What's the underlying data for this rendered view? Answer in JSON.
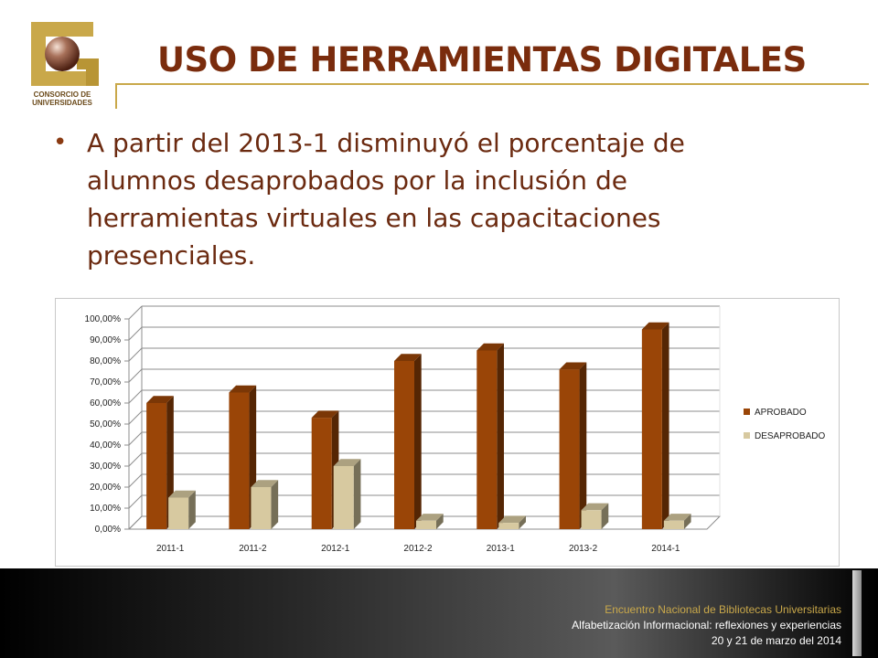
{
  "slide": {
    "title": "USO DE HERRAMIENTAS DIGITALES",
    "bullet_marker": "•",
    "bullet_text": "A partir del 2013-1 disminuyó el porcentaje de alumnos desaprobados por la inclusión de herramientas virtuales en las capacitaciones presenciales.",
    "logo_text": [
      "CONSORCIO DE",
      "UNIVERSIDADES"
    ]
  },
  "footer": {
    "line1": "Encuentro Nacional de Bibliotecas Universitarias",
    "line2": "Alfabetización Informacional: reflexiones y experiencias",
    "line3": "20 y 21 de marzo del 2014"
  },
  "colors": {
    "title": "#7a2c0d",
    "gold": "#c9a84a",
    "aprobado": "#9a4507",
    "desaprobado": "#d7c9a0"
  },
  "chart_data": {
    "type": "bar",
    "title": "",
    "xlabel": "",
    "ylabel": "",
    "categories": [
      "2011-1",
      "2011-2",
      "2012-1",
      "2012-2",
      "2013-1",
      "2013-2",
      "2014-1"
    ],
    "series": [
      {
        "name": "APROBADO",
        "values": [
          60,
          65,
          53,
          80,
          85,
          76,
          95
        ],
        "color": "#9a4507"
      },
      {
        "name": "DESAPROBADO",
        "values": [
          15,
          20,
          30,
          4,
          3,
          9,
          4
        ],
        "color": "#d7c9a0"
      }
    ],
    "ylim": [
      0,
      100
    ],
    "yticks": [
      "0,00%",
      "10,00%",
      "20,00%",
      "30,00%",
      "40,00%",
      "50,00%",
      "60,00%",
      "70,00%",
      "80,00%",
      "90,00%",
      "100,00%"
    ],
    "grid": true,
    "legend_position": "right",
    "style": "3d"
  }
}
